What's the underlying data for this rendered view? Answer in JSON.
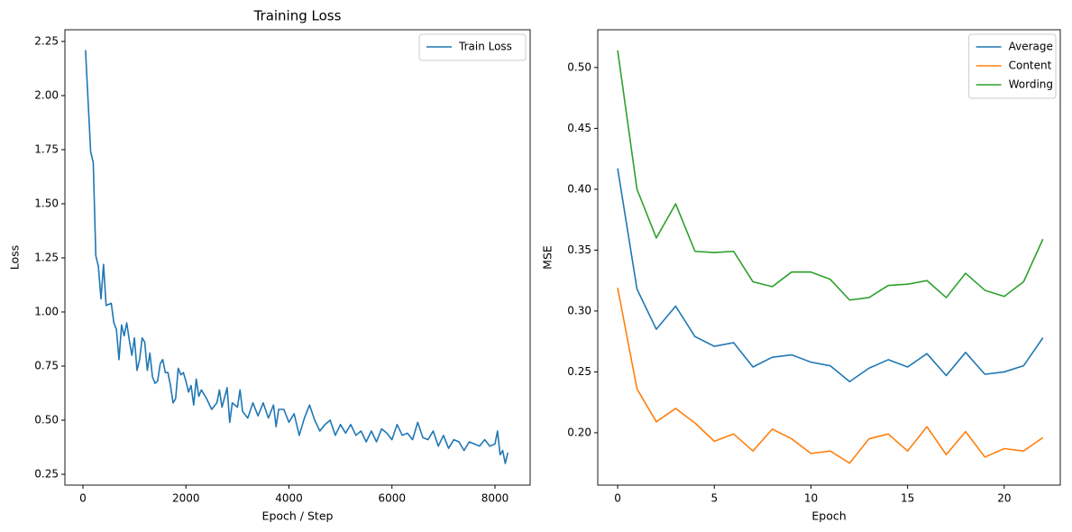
{
  "chart_data": [
    {
      "type": "line",
      "title": "Training Loss",
      "x_label": "Epoch / Step",
      "y_label": "Loss",
      "xlim": [
        -350,
        8683
      ],
      "ylim": [
        0.2,
        2.304
      ],
      "xticks": [
        0,
        2000,
        4000,
        6000,
        8000
      ],
      "yticks": [
        0.25,
        {
          "value": 0.5,
          "label": "0.50"
        },
        0.75,
        {
          "value": 1,
          "label": "1.00"
        },
        1.25,
        {
          "value": 1.5,
          "label": "1.50"
        },
        1.75,
        {
          "value": 2,
          "label": "2.00"
        },
        2.25
      ],
      "legend": "upper right",
      "x": [
        50,
        150,
        200,
        250,
        300,
        350,
        400,
        450,
        550,
        600,
        650,
        700,
        750,
        800,
        850,
        900,
        950,
        1000,
        1050,
        1100,
        1150,
        1200,
        1250,
        1300,
        1350,
        1400,
        1450,
        1500,
        1550,
        1600,
        1650,
        1700,
        1750,
        1800,
        1850,
        1900,
        1950,
        2000,
        2050,
        2100,
        2150,
        2200,
        2250,
        2300,
        2400,
        2500,
        2600,
        2650,
        2700,
        2800,
        2850,
        2900,
        3000,
        3050,
        3100,
        3200,
        3300,
        3400,
        3500,
        3600,
        3700,
        3750,
        3800,
        3900,
        4000,
        4100,
        4200,
        4300,
        4400,
        4500,
        4600,
        4700,
        4800,
        4900,
        5000,
        5100,
        5200,
        5300,
        5400,
        5500,
        5600,
        5700,
        5800,
        5900,
        6000,
        6100,
        6200,
        6300,
        6400,
        6500,
        6600,
        6700,
        6800,
        6900,
        7000,
        7100,
        7200,
        7300,
        7400,
        7500,
        7600,
        7700,
        7800,
        7900,
        8000,
        8050,
        8100,
        8150,
        8200,
        8250
      ],
      "series": [
        {
          "name": "Train Loss",
          "color": "#1f77b4",
          "values": [
            2.21,
            1.74,
            1.69,
            1.26,
            1.21,
            1.06,
            1.22,
            1.03,
            1.04,
            0.95,
            0.92,
            0.78,
            0.94,
            0.89,
            0.95,
            0.87,
            0.8,
            0.88,
            0.73,
            0.78,
            0.88,
            0.86,
            0.73,
            0.81,
            0.7,
            0.67,
            0.68,
            0.76,
            0.78,
            0.72,
            0.72,
            0.66,
            0.58,
            0.6,
            0.74,
            0.71,
            0.72,
            0.68,
            0.63,
            0.66,
            0.57,
            0.69,
            0.61,
            0.64,
            0.6,
            0.55,
            0.58,
            0.64,
            0.56,
            0.65,
            0.49,
            0.58,
            0.56,
            0.64,
            0.54,
            0.51,
            0.58,
            0.52,
            0.58,
            0.51,
            0.57,
            0.47,
            0.55,
            0.55,
            0.49,
            0.53,
            0.43,
            0.51,
            0.57,
            0.5,
            0.45,
            0.48,
            0.5,
            0.43,
            0.48,
            0.44,
            0.48,
            0.43,
            0.45,
            0.4,
            0.45,
            0.4,
            0.46,
            0.44,
            0.41,
            0.48,
            0.43,
            0.44,
            0.41,
            0.49,
            0.42,
            0.41,
            0.45,
            0.38,
            0.43,
            0.37,
            0.41,
            0.4,
            0.36,
            0.4,
            0.39,
            0.38,
            0.41,
            0.38,
            0.39,
            0.45,
            0.34,
            0.36,
            0.3,
            0.35
          ]
        }
      ]
    },
    {
      "type": "line",
      "x_label": "Epoch",
      "y_label": "MSE",
      "xlim": [
        -1.03,
        22.9
      ],
      "ylim": [
        0.157,
        0.531
      ],
      "xticks": [
        0,
        5,
        10,
        15,
        20
      ],
      "yticks": [
        {
          "value": 0.2,
          "label": "0.20"
        },
        0.25,
        {
          "value": 0.3,
          "label": "0.30"
        },
        0.35,
        {
          "value": 0.4,
          "label": "0.40"
        },
        0.45,
        {
          "value": 0.5,
          "label": "0.50"
        }
      ],
      "legend": "upper right",
      "x": [
        0,
        1,
        2,
        3,
        4,
        5,
        6,
        7,
        8,
        9,
        10,
        11,
        12,
        13,
        14,
        15,
        16,
        17,
        18,
        19,
        20,
        21,
        22
      ],
      "series": [
        {
          "name": "Average",
          "color": "#1f77b4",
          "values": [
            0.417,
            0.318,
            0.285,
            0.304,
            0.279,
            0.271,
            0.274,
            0.254,
            0.262,
            0.264,
            0.258,
            0.255,
            0.242,
            0.253,
            0.26,
            0.254,
            0.265,
            0.247,
            0.266,
            0.248,
            0.25,
            0.255,
            0.278
          ]
        },
        {
          "name": "Content",
          "color": "#ff7f0e",
          "values": [
            0.319,
            0.236,
            0.209,
            0.22,
            0.208,
            0.193,
            0.199,
            0.185,
            0.203,
            0.195,
            0.183,
            0.185,
            0.175,
            0.195,
            0.199,
            0.185,
            0.205,
            0.182,
            0.201,
            0.18,
            0.187,
            0.185,
            0.196
          ]
        },
        {
          "name": "Wording",
          "color": "#2ca02c",
          "values": [
            0.514,
            0.4,
            0.36,
            0.388,
            0.349,
            0.348,
            0.349,
            0.324,
            0.32,
            0.332,
            0.332,
            0.326,
            0.309,
            0.311,
            0.321,
            0.322,
            0.325,
            0.311,
            0.331,
            0.317,
            0.312,
            0.324,
            0.359
          ]
        }
      ]
    }
  ]
}
